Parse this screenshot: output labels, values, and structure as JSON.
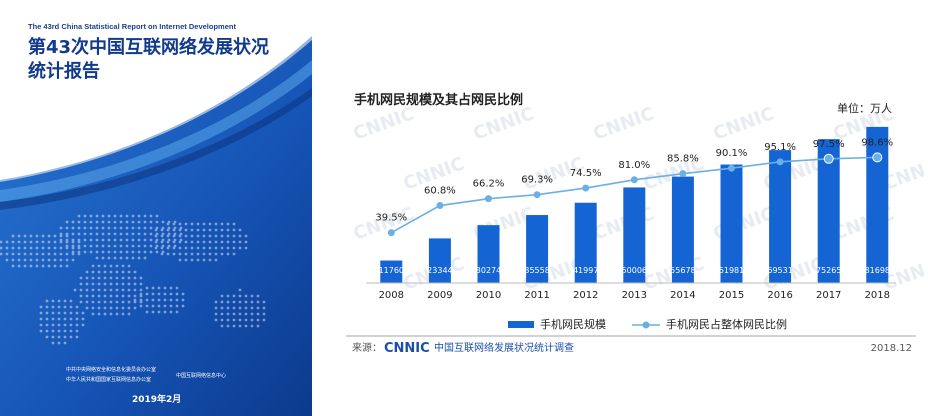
{
  "cover": {
    "subtitle": "The 43rd China Statistical Report on Internet Development",
    "title_line1": "第43次中国互联网络发展状况",
    "title_line2": "统计报告",
    "org1": "中共中央网络安全和信息化委员会办公室",
    "org2": "中华人民共和国国家互联网信息办公室",
    "org3": "中国互联网络信息中心",
    "date": "2019年2月",
    "colors": {
      "primary": "#1a4fa8",
      "dark": "#0f3a8a",
      "light": "#3a86d8"
    }
  },
  "chart_data": {
    "type": "bar",
    "title": "手机网民规模及其占网民比例",
    "unit_label": "单位：万人",
    "categories": [
      "2008",
      "2009",
      "2010",
      "2011",
      "2012",
      "2013",
      "2014",
      "2015",
      "2016",
      "2017",
      "2018"
    ],
    "series": [
      {
        "name": "手机网民规模",
        "type": "bar",
        "color": "#1464d4",
        "values": [
          11760,
          23344,
          30274,
          35558,
          41997,
          50006,
          55678,
          61981,
          69531,
          75265,
          81698
        ]
      },
      {
        "name": "手机网民占整体网民比例",
        "type": "line",
        "color": "#6ab0e4",
        "values": [
          39.5,
          60.8,
          66.2,
          69.3,
          74.5,
          81.0,
          85.8,
          90.1,
          95.1,
          97.5,
          98.6
        ],
        "labels": [
          "39.5%",
          "60.8%",
          "66.2%",
          "69.3%",
          "74.5%",
          "81.0%",
          "85.8%",
          "90.1%",
          "95.1%",
          "97.5%",
          "98.6%"
        ]
      }
    ],
    "ylim": [
      0,
      90000
    ],
    "ratio_lim": [
      0,
      135
    ],
    "grid": false,
    "legend": "bottom",
    "source_label": "来源：",
    "source_logo": "CNNIC",
    "source_text": "中国互联网络发展状况统计调查",
    "source_date": "2018.12",
    "watermark": "CNNIC"
  }
}
